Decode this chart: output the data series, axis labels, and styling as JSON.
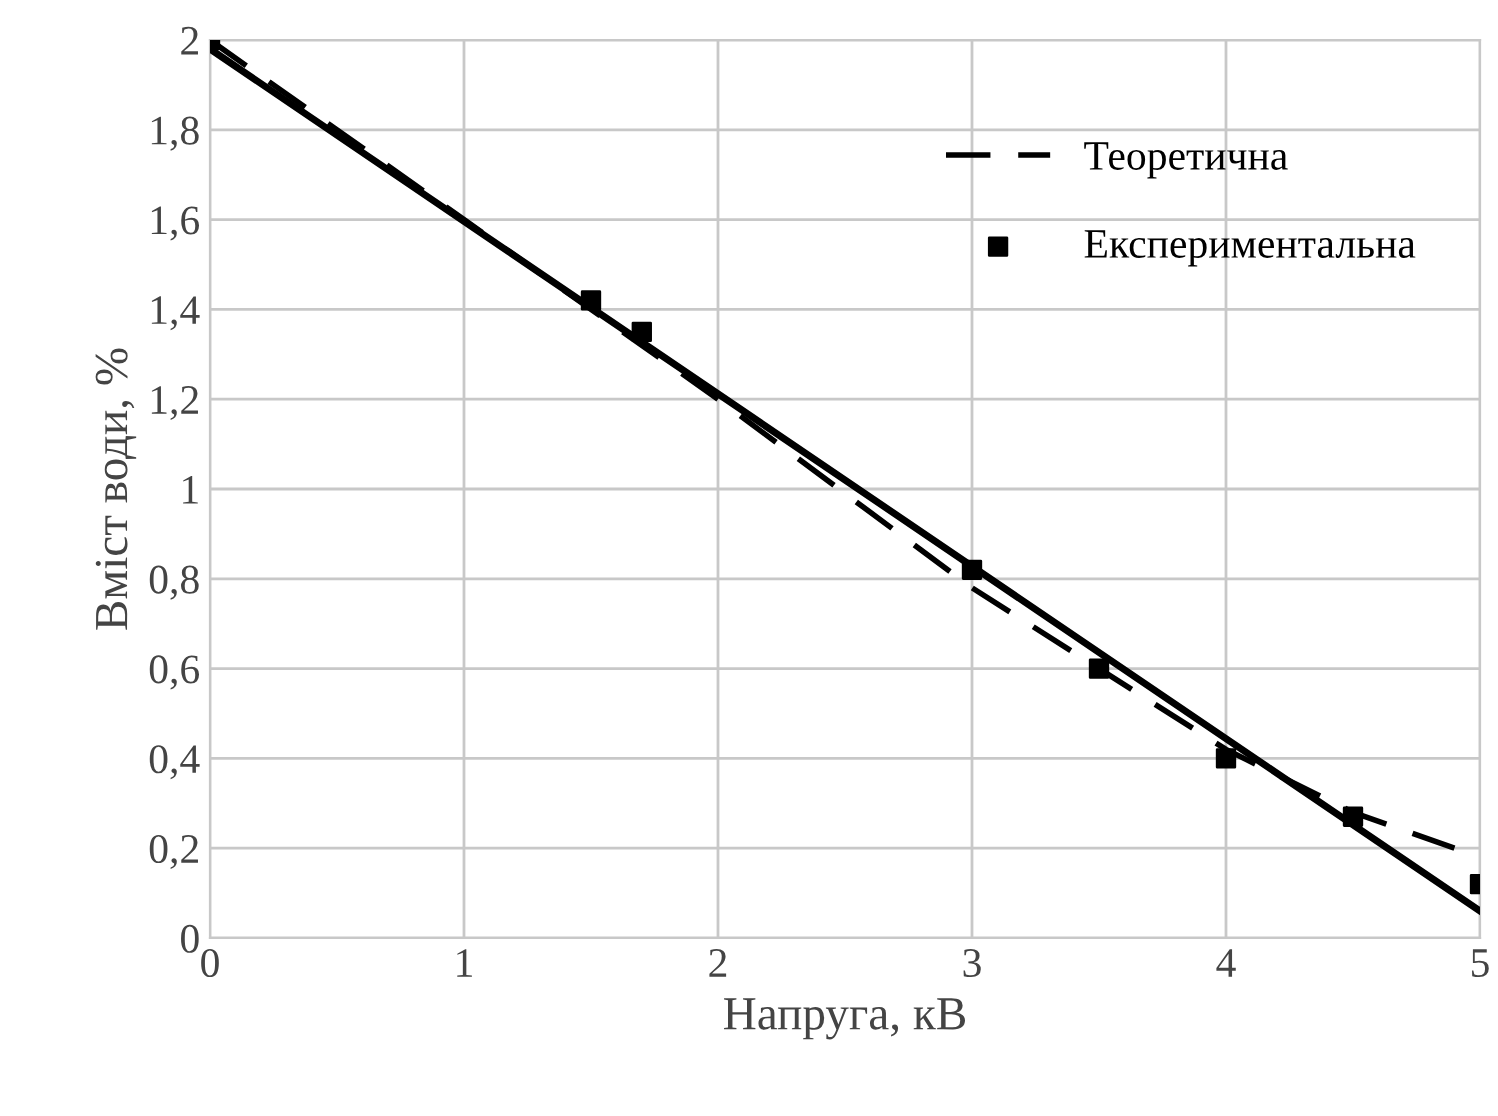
{
  "chart_data": {
    "type": "line",
    "xlabel": "Напруга, кВ",
    "ylabel": "Вміст води, %",
    "xlim": [
      0,
      5
    ],
    "ylim": [
      0,
      2
    ],
    "xticks": [
      0,
      1,
      2,
      3,
      4,
      5
    ],
    "yticks": [
      0,
      {
        "value": 0.2,
        "label": "0,2"
      },
      {
        "value": 0.4,
        "label": "0,4"
      },
      {
        "value": 0.6,
        "label": "0,6"
      },
      {
        "value": 0.8,
        "label": "0,8"
      },
      1,
      {
        "value": 1.2,
        "label": "1,2"
      },
      {
        "value": 1.4,
        "label": "1,4"
      },
      {
        "value": 1.6,
        "label": "1,6"
      },
      {
        "value": 1.8,
        "label": "1,8"
      },
      2
    ],
    "grid": true,
    "legend": "top right",
    "series": [
      {
        "name": "Теоретична",
        "line_style": "dashed",
        "color": "#000000",
        "x": [
          0,
          1,
          2,
          3,
          3.5,
          4,
          4.5,
          5
        ],
        "values": [
          2.0,
          1.6,
          1.2,
          0.78,
          0.6,
          0.42,
          0.28,
          0.18
        ]
      },
      {
        "name": "Експериментальна",
        "type": "scatter",
        "marker": "square",
        "color": "#000000",
        "x": [
          0,
          1.5,
          1.7,
          3,
          3.5,
          4,
          4.5,
          5
        ],
        "values": [
          2.0,
          1.42,
          1.35,
          0.82,
          0.6,
          0.4,
          0.27,
          0.12
        ]
      },
      {
        "line_style": "solid",
        "color": "#000000",
        "x": [
          0,
          5
        ],
        "values": [
          1.98,
          0.06
        ]
      }
    ]
  }
}
